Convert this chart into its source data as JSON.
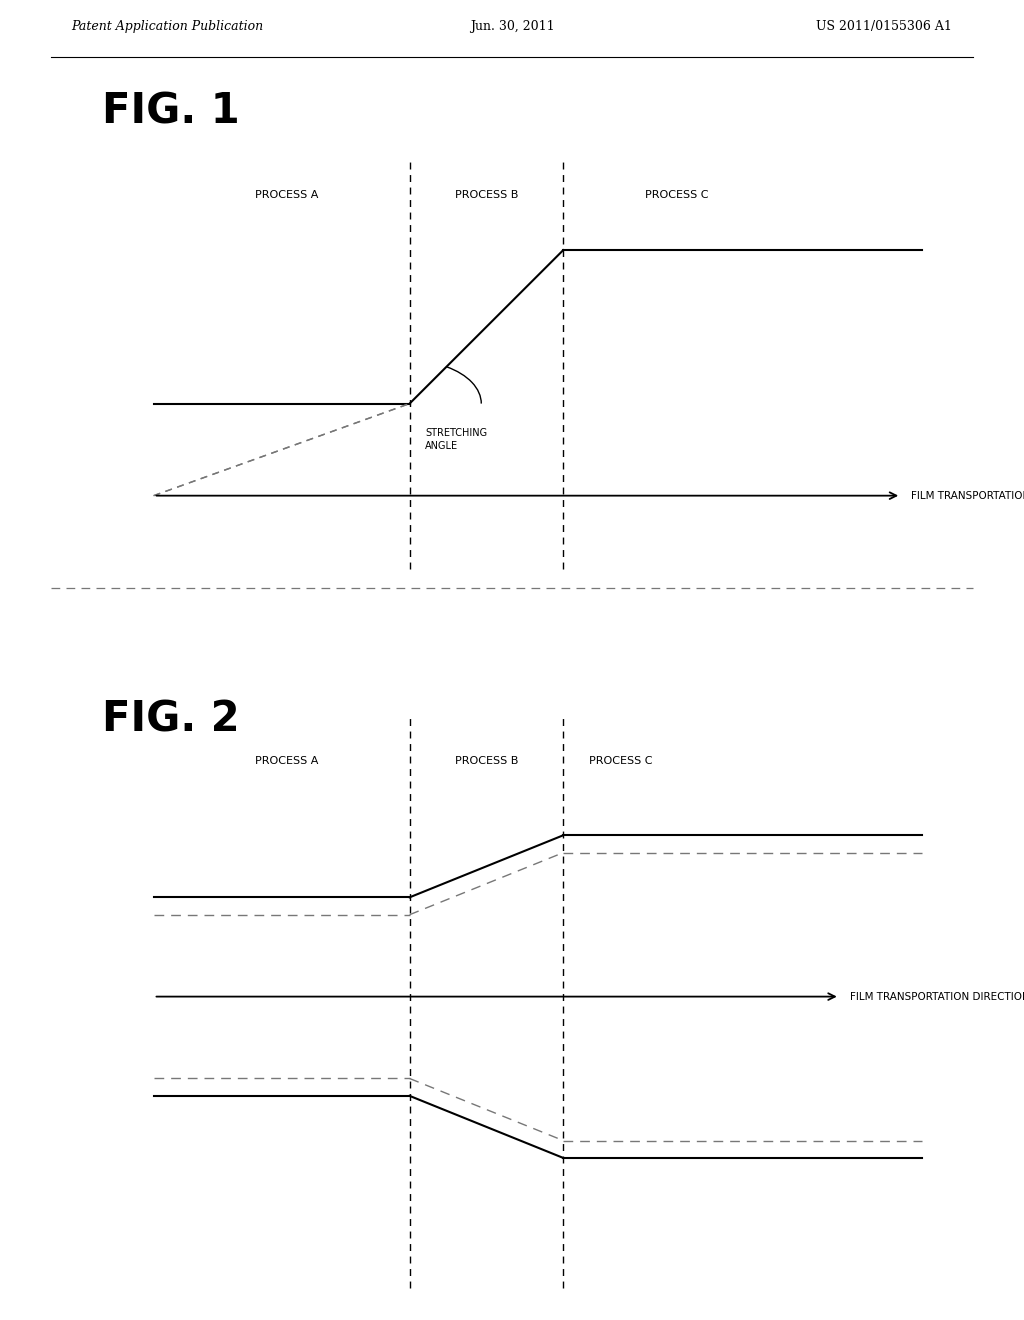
{
  "bg_color": "#ffffff",
  "header_left": "Patent Application Publication",
  "header_center": "Jun. 30, 2011",
  "header_right": "US 2011/0155306 A1",
  "fig1_label": "FIG. 1",
  "fig2_label": "FIG. 2",
  "process_a": "PROCESS A",
  "process_b": "PROCESS B",
  "process_c": "PROCESS C",
  "stretching_label": "STRETCHING\nANGLE",
  "film_transport": "FILM TRANSPORTATION DIRECTION",
  "line_color": "#000000",
  "dashed_color": "#777777",
  "header_line_color": "#000000",
  "font_size_header": 9,
  "font_size_fig_label": 30,
  "font_size_process": 8,
  "font_size_arrow": 7.5
}
